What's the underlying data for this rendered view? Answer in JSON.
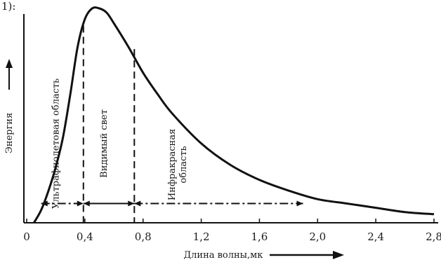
{
  "header_fragment": "1):",
  "chart_data": {
    "type": "line",
    "title": "",
    "xlabel": "Длина волны,мк",
    "ylabel": "Энергия",
    "xlim": [
      0,
      2.8
    ],
    "x_ticks": [
      "0",
      "0,4",
      "0,8",
      "1,2",
      "1,6",
      "2,0",
      "2,4",
      "2,8"
    ],
    "x_tick_values": [
      0,
      0.4,
      0.8,
      1.2,
      1.6,
      2.0,
      2.4,
      2.8
    ],
    "y_ticks": [],
    "ylim": [
      0,
      1
    ],
    "grid": false,
    "series": [
      {
        "x": [
          0.05,
          0.1,
          0.15,
          0.2,
          0.25,
          0.3,
          0.35,
          0.4,
          0.45,
          0.5,
          0.55,
          0.6,
          0.7,
          0.8,
          0.9,
          1.0,
          1.2,
          1.4,
          1.6,
          1.8,
          2.0,
          2.2,
          2.4,
          2.6,
          2.8
        ],
        "values": [
          0.0,
          0.06,
          0.15,
          0.26,
          0.4,
          0.6,
          0.82,
          0.95,
          1.0,
          1.0,
          0.98,
          0.93,
          0.82,
          0.7,
          0.6,
          0.51,
          0.37,
          0.27,
          0.2,
          0.15,
          0.11,
          0.09,
          0.07,
          0.05,
          0.04
        ]
      }
    ],
    "boundaries": [
      {
        "x": 0.39,
        "y": 0.92
      },
      {
        "x": 0.74,
        "y": 0.81
      }
    ],
    "regions": [
      {
        "label": "Ультрафиолетовая область",
        "x": 0.22,
        "rotation": "vertical"
      },
      {
        "label": "Видимый свет",
        "x": 0.55,
        "rotation": "vertical"
      },
      {
        "label": "Инфракрасная область",
        "x": 1.0,
        "rotation": "vertical"
      }
    ],
    "span_arrows": [
      {
        "from": 0.1,
        "to": 0.39,
        "y": 0.09,
        "style": "dash-dot"
      },
      {
        "from": 0.39,
        "to": 0.74,
        "y": 0.09,
        "style": "solid"
      },
      {
        "from": 0.74,
        "to": 1.9,
        "y": 0.09,
        "style": "dash-dot"
      }
    ],
    "axis_arrows": {
      "x": true,
      "y": true
    },
    "color": "#111111"
  }
}
